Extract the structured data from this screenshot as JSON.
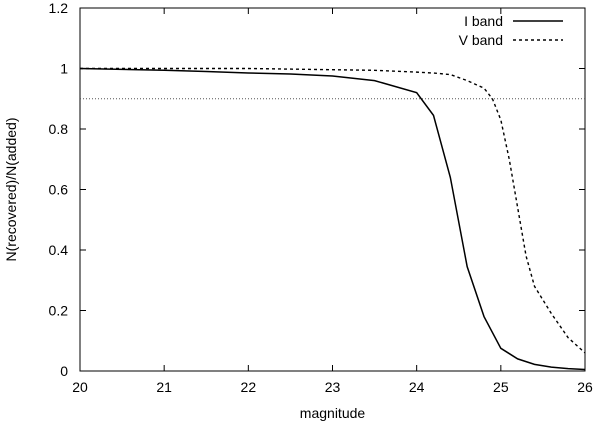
{
  "chart_data": {
    "type": "line",
    "title": "",
    "xlabel": "magnitude",
    "ylabel": "N(recovered)/N(added)",
    "xlim": [
      20,
      26
    ],
    "ylim": [
      0,
      1.2
    ],
    "x_ticks": [
      20,
      21,
      22,
      23,
      24,
      25,
      26
    ],
    "y_ticks": [
      0,
      0.2,
      0.4,
      0.6,
      0.8,
      1,
      1.2
    ],
    "x_tick_labels": [
      "20",
      "21",
      "22",
      "23",
      "24",
      "25",
      "26"
    ],
    "y_tick_labels": [
      "0",
      "0.2",
      "0.4",
      "0.6",
      "0.8",
      "1",
      "1.2"
    ],
    "grid": false,
    "legend_position": "top-right",
    "reference_line": {
      "y": 0.9,
      "style": "dotted",
      "color": "#555555"
    },
    "series": [
      {
        "name": "I band",
        "style": "solid",
        "color": "#000000",
        "x": [
          20,
          20.5,
          21,
          21.5,
          22,
          22.5,
          23,
          23.5,
          24,
          24.2,
          24.4,
          24.6,
          24.8,
          25,
          25.2,
          25.4,
          25.6,
          25.8,
          26
        ],
        "y": [
          1.0,
          0.997,
          0.994,
          0.99,
          0.985,
          0.982,
          0.975,
          0.96,
          0.92,
          0.845,
          0.64,
          0.345,
          0.18,
          0.075,
          0.04,
          0.022,
          0.013,
          0.008,
          0.005
        ]
      },
      {
        "name": "V band",
        "style": "dashed",
        "color": "#000000",
        "x": [
          20,
          20.5,
          21,
          21.5,
          22,
          22.5,
          23,
          23.5,
          24,
          24.2,
          24.4,
          24.6,
          24.8,
          24.9,
          25,
          25.1,
          25.2,
          25.3,
          25.4,
          25.6,
          25.8,
          26
        ],
        "y": [
          1.0,
          1.0,
          1.0,
          1.0,
          1.0,
          0.998,
          0.996,
          0.994,
          0.988,
          0.985,
          0.98,
          0.96,
          0.935,
          0.9,
          0.83,
          0.7,
          0.54,
          0.38,
          0.28,
          0.19,
          0.11,
          0.06
        ]
      }
    ]
  }
}
